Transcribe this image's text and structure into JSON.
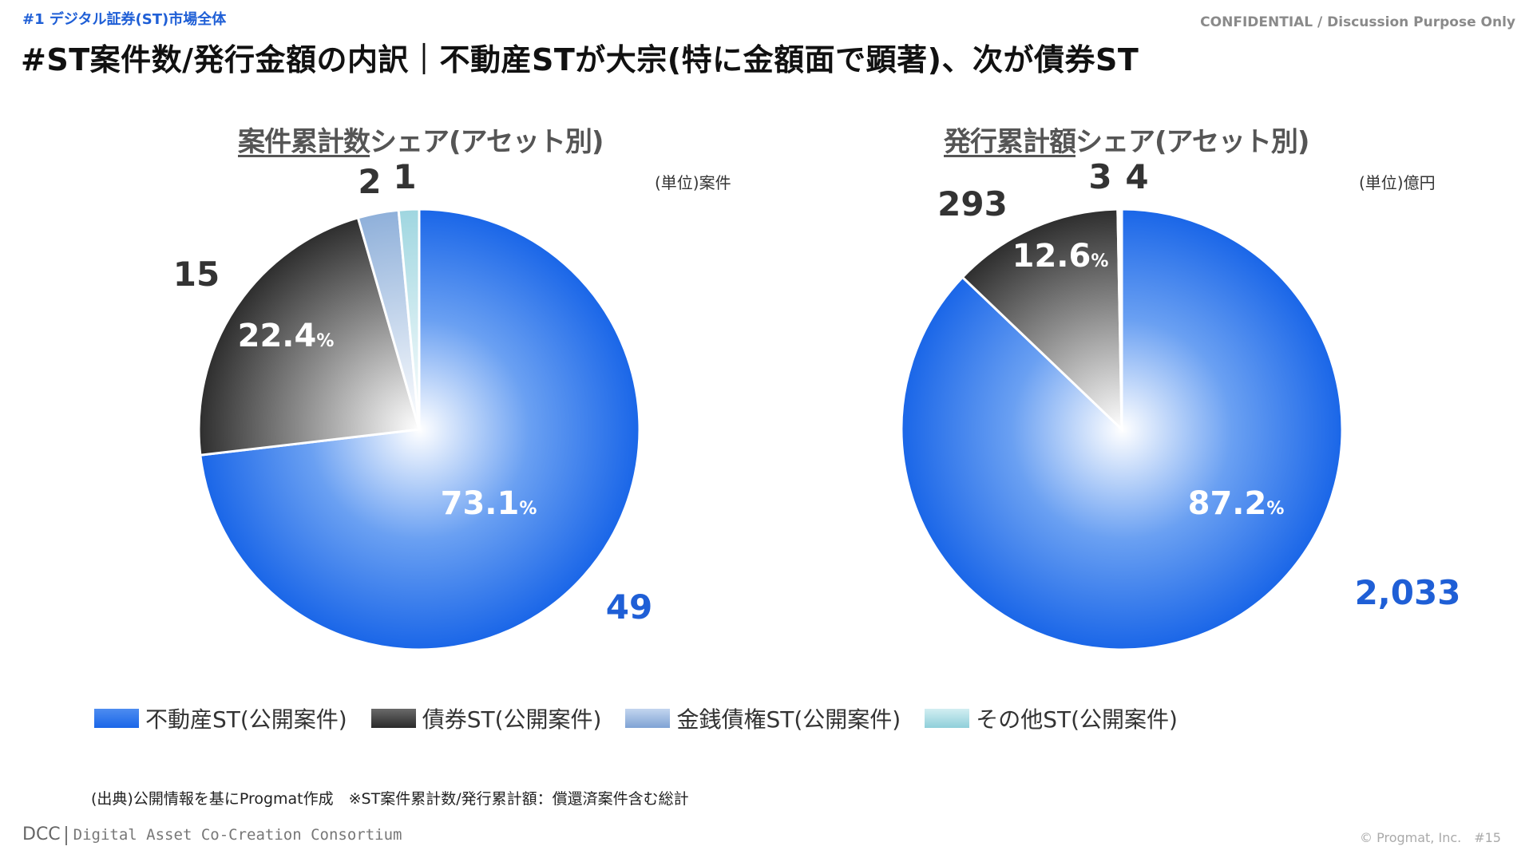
{
  "header": {
    "tag": "#1 デジタル証券(ST)市場全体",
    "confidential": "CONFIDENTIAL / Discussion Purpose Only",
    "title": "#ST案件数/発行金額の内訳｜不動産STが大宗(特に金額面で顕著)、次が債券ST"
  },
  "colors": {
    "real_estate": "#1a66e8",
    "bond": "#3a3a3a",
    "monetary": "#8fb0da",
    "other": "#9fd6e0",
    "accent_value": "#1f5fd6"
  },
  "chart_data": [
    {
      "type": "pie",
      "title_underlined": "案件累計数",
      "title_rest": "シェア(アセット別)",
      "unit": "(単位)案件",
      "categories": [
        "不動産ST(公開案件)",
        "債券ST(公開案件)",
        "金銭債権ST(公開案件)",
        "その他ST(公開案件)"
      ],
      "values": [
        49,
        15,
        2,
        1
      ],
      "value_labels": [
        "49",
        "15",
        "2",
        "1"
      ],
      "percent_labels": [
        "73.1",
        "22.4",
        "",
        ""
      ],
      "percent_sign": "%"
    },
    {
      "type": "pie",
      "title_underlined": "発行累計額",
      "title_rest": "シェア(アセット別)",
      "unit": "(単位)億円",
      "categories": [
        "不動産ST(公開案件)",
        "債券ST(公開案件)",
        "金銭債権ST(公開案件)",
        "その他ST(公開案件)"
      ],
      "values": [
        2033,
        293,
        3,
        4
      ],
      "value_labels": [
        "2,033",
        "293",
        "3",
        "4"
      ],
      "percent_labels": [
        "87.2",
        "12.6",
        "",
        ""
      ],
      "percent_sign": "%"
    }
  ],
  "legend": [
    {
      "label": "不動産ST(公開案件)",
      "color_key": "real_estate"
    },
    {
      "label": "債券ST(公開案件)",
      "color_key": "bond"
    },
    {
      "label": "金銭債権ST(公開案件)",
      "color_key": "monetary"
    },
    {
      "label": "その他ST(公開案件)",
      "color_key": "other"
    }
  ],
  "footer": {
    "source": "(出典)公開情報を基にProgmat作成　※ST案件累計数/発行累計額：償還済案件含む総計",
    "logo_short": "DCC",
    "logo_long": "Digital Asset Co-Creation Consortium",
    "copyright": "© Progmat, Inc.　#15"
  }
}
